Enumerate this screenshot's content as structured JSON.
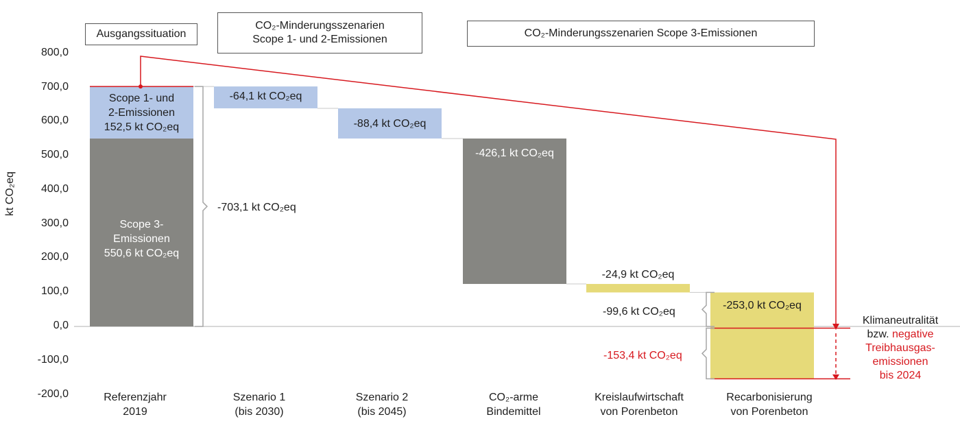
{
  "header_boxes": [
    {
      "lines": [
        "Ausgangssituation"
      ]
    },
    {
      "lines": [
        "CO₂-Minderungsszenarien",
        "Scope 1- und 2-Emissionen"
      ]
    },
    {
      "lines": [
        "CO₂-Minderungsszenarien Scope 3-Emissionen"
      ]
    }
  ],
  "colors": {
    "scope3": "#868682",
    "scope12": "#b4c7e7",
    "circular": "#e6da79",
    "accent_red": "#d7191f",
    "axis": "#b0b0b0",
    "bracket": "#a6a6a6"
  },
  "chart_data": {
    "type": "bar",
    "subtype": "waterfall",
    "ylabel": "kt CO₂eq",
    "ylim": [
      -200,
      800
    ],
    "yticks": [
      "800,0",
      "700,0",
      "600,0",
      "500,0",
      "400,0",
      "300,0",
      "200,0",
      "100,0",
      "0,0",
      "-100,0",
      "-200,0"
    ],
    "ytick_values": [
      800,
      700,
      600,
      500,
      400,
      300,
      200,
      100,
      0,
      -100,
      -200
    ],
    "categories": [
      {
        "lines": [
          "Referenzjahr",
          "2019"
        ]
      },
      {
        "lines": [
          "Szenario 1",
          "(bis 2030)"
        ]
      },
      {
        "lines": [
          "Szenario 2",
          "(bis 2045)"
        ]
      },
      {
        "lines": [
          "CO₂-arme",
          "Bindemittel"
        ]
      },
      {
        "lines": [
          "Kreislaufwirtschaft",
          "von Porenbeton"
        ]
      },
      {
        "lines": [
          "Recarbonisierung",
          "von Porenbeton"
        ]
      }
    ],
    "bars": [
      {
        "category": 0,
        "from": 0,
        "to": 550.6,
        "kind": "scope3",
        "label_lines": [
          "Scope 3-",
          "Emissionen",
          "550,6 kt CO₂eq"
        ]
      },
      {
        "category": 0,
        "from": 550.6,
        "to": 703.1,
        "kind": "scope12",
        "label_lines": [
          "Scope 1- und",
          "2-Emissionen",
          "152,5 kt CO₂eq"
        ]
      },
      {
        "category": 1,
        "from": 639,
        "to": 703.1,
        "kind": "scope12",
        "label_lines": [
          "-64,1 kt CO₂eq"
        ]
      },
      {
        "category": 2,
        "from": 550.6,
        "to": 639,
        "kind": "scope12",
        "label_lines": [
          "-88,4 kt CO₂eq"
        ]
      },
      {
        "category": 3,
        "from": 124.5,
        "to": 550.6,
        "kind": "scope3",
        "label_lines": [
          "-426,1 kt CO₂eq"
        ]
      },
      {
        "category": 4,
        "from": 99.6,
        "to": 124.5,
        "kind": "circular",
        "label_lines": [
          "-24,9 kt CO₂eq"
        ]
      },
      {
        "category": 5,
        "from": -153.4,
        "to": 99.6,
        "kind": "circular",
        "label_lines": [
          "-253,0 kt CO₂eq"
        ]
      }
    ],
    "total_reduction_label": "-703,1 kt CO₂eq",
    "positive_part_label": "-99,6 kt CO₂eq",
    "negative_part_label": "-153,4 kt CO₂eq",
    "final_note": {
      "line1": "Klimaneutralität",
      "line2_black": "bzw. ",
      "line2_red": "negative",
      "line3": "Treibhausgas-",
      "line4": "emissionen",
      "line5": "bis 2024"
    }
  }
}
